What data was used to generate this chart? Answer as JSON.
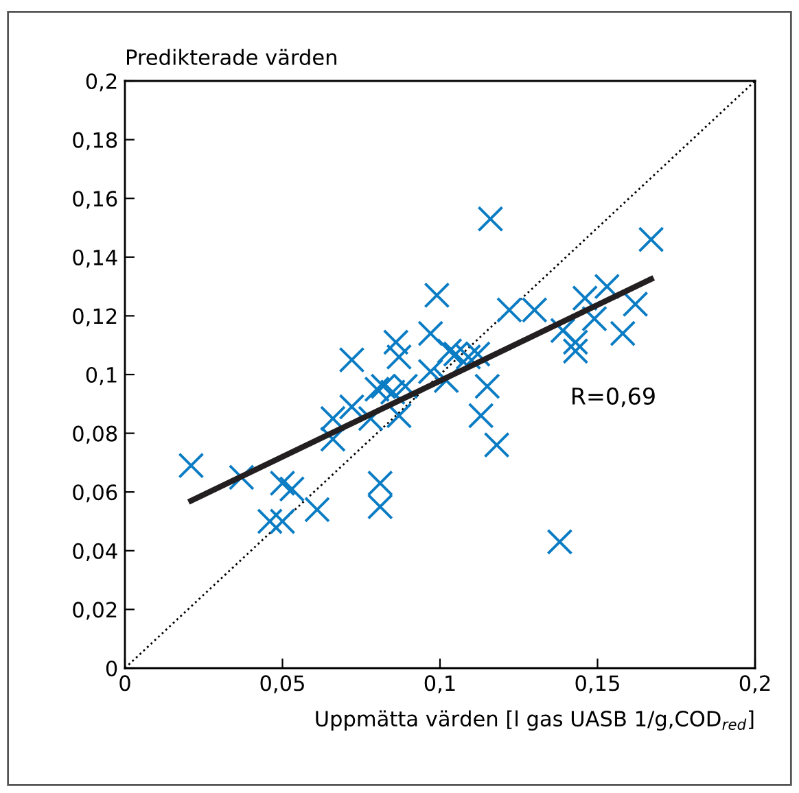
{
  "chart_data": {
    "type": "scatter",
    "ylabel": "Predikterade värden",
    "xlabel": "Uppmätta värden [l gas UASB 1/g,COD$_{red}$]",
    "xlim": [
      0,
      0.2
    ],
    "ylim": [
      0,
      0.2
    ],
    "xticks": [
      0,
      {
        "value": 0.05,
        "label": "0,05"
      },
      {
        "value": 0.1,
        "label": "0,1"
      },
      {
        "value": 0.15,
        "label": "0,15"
      },
      {
        "value": 0.2,
        "label": "0,2"
      }
    ],
    "yticks": [
      0,
      {
        "value": 0.02,
        "label": "0,02"
      },
      {
        "value": 0.04,
        "label": "0,04"
      },
      {
        "value": 0.06,
        "label": "0,06"
      },
      {
        "value": 0.08,
        "label": "0,08"
      },
      {
        "value": 0.1,
        "label": "0,1"
      },
      {
        "value": 0.12,
        "label": "0,12"
      },
      {
        "value": 0.14,
        "label": "0,14"
      },
      {
        "value": 0.16,
        "label": "0,16"
      },
      {
        "value": 0.18,
        "label": "0,18"
      },
      {
        "value": 0.2,
        "label": "0,2"
      }
    ],
    "grid": false,
    "legend": false,
    "annotations": [
      "R=0,69"
    ],
    "series": [
      {
        "marker": "cross",
        "color": "#0a7cc4",
        "x": [
          0.021,
          0.037,
          0.05,
          0.053,
          0.046,
          0.05,
          0.061,
          0.081,
          0.081,
          0.066,
          0.066,
          0.072,
          0.072,
          0.075,
          0.078,
          0.08,
          0.082,
          0.085,
          0.087,
          0.089,
          0.086,
          0.087,
          0.097,
          0.097,
          0.099,
          0.116,
          0.167,
          0.122,
          0.13,
          0.146,
          0.153,
          0.162,
          0.158,
          0.149,
          0.139,
          0.143,
          0.143,
          0.103,
          0.105,
          0.109,
          0.112,
          0.109,
          0.102,
          0.115,
          0.113,
          0.118,
          0.138
        ],
        "values": [
          0.069,
          0.065,
          0.063,
          0.061,
          0.05,
          0.05,
          0.054,
          0.063,
          0.055,
          0.078,
          0.085,
          0.105,
          0.089,
          null,
          0.085,
          0.095,
          0.096,
          0.094,
          0.086,
          0.096,
          0.111,
          0.106,
          0.101,
          0.114,
          0.127,
          0.153,
          0.146,
          0.122,
          0.122,
          0.126,
          0.13,
          0.124,
          0.114,
          0.119,
          0.115,
          0.111,
          0.108,
          0.108,
          0.107,
          0.106,
          0.107,
          null,
          0.098,
          0.096,
          0.086,
          0.076,
          0.043
        ]
      },
      {
        "type": "line",
        "color": "#000000",
        "line_style": "dotted",
        "x": [
          0,
          0.2
        ],
        "values": [
          0,
          0.2
        ]
      },
      {
        "type": "line",
        "color": "#231f20",
        "line_style": "solid",
        "x": [
          0.021,
          0.167
        ],
        "values": [
          0.057,
          0.1325
        ]
      }
    ]
  }
}
